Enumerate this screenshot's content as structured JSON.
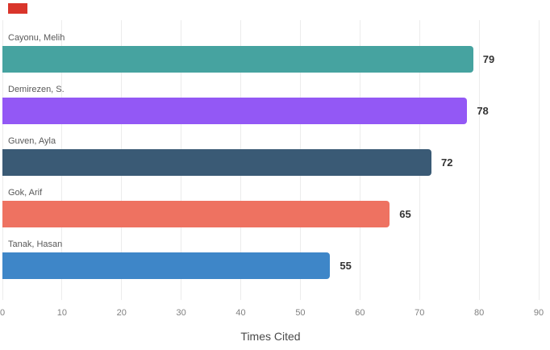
{
  "annotations": {
    "red_marker_color": "#d9352b"
  },
  "chart_data": {
    "type": "bar",
    "orientation": "horizontal",
    "title": "",
    "xlabel": "Times Cited",
    "ylabel": "",
    "xlim": [
      0,
      90
    ],
    "xticks": [
      0,
      10,
      20,
      30,
      40,
      50,
      60,
      70,
      80,
      90
    ],
    "grid": true,
    "legend": false,
    "value_labels_shown": true,
    "categories": [
      "Cayonu, Melih",
      "Demirezen, S.",
      "Guven, Ayla",
      "Gok, Arif",
      "Tanak, Hasan"
    ],
    "values": [
      79,
      78,
      72,
      65,
      55
    ],
    "bar_colors": [
      "#46a3a0",
      "#9358f5",
      "#3a5a75",
      "#ee7261",
      "#3e86c8"
    ]
  },
  "styles": {
    "background_color": "#ffffff",
    "grid_color": "#ececec",
    "category_label_color": "#595959",
    "value_label_color": "#333333",
    "tick_label_color": "#808080",
    "axis_title_color": "#4a4a4a"
  }
}
